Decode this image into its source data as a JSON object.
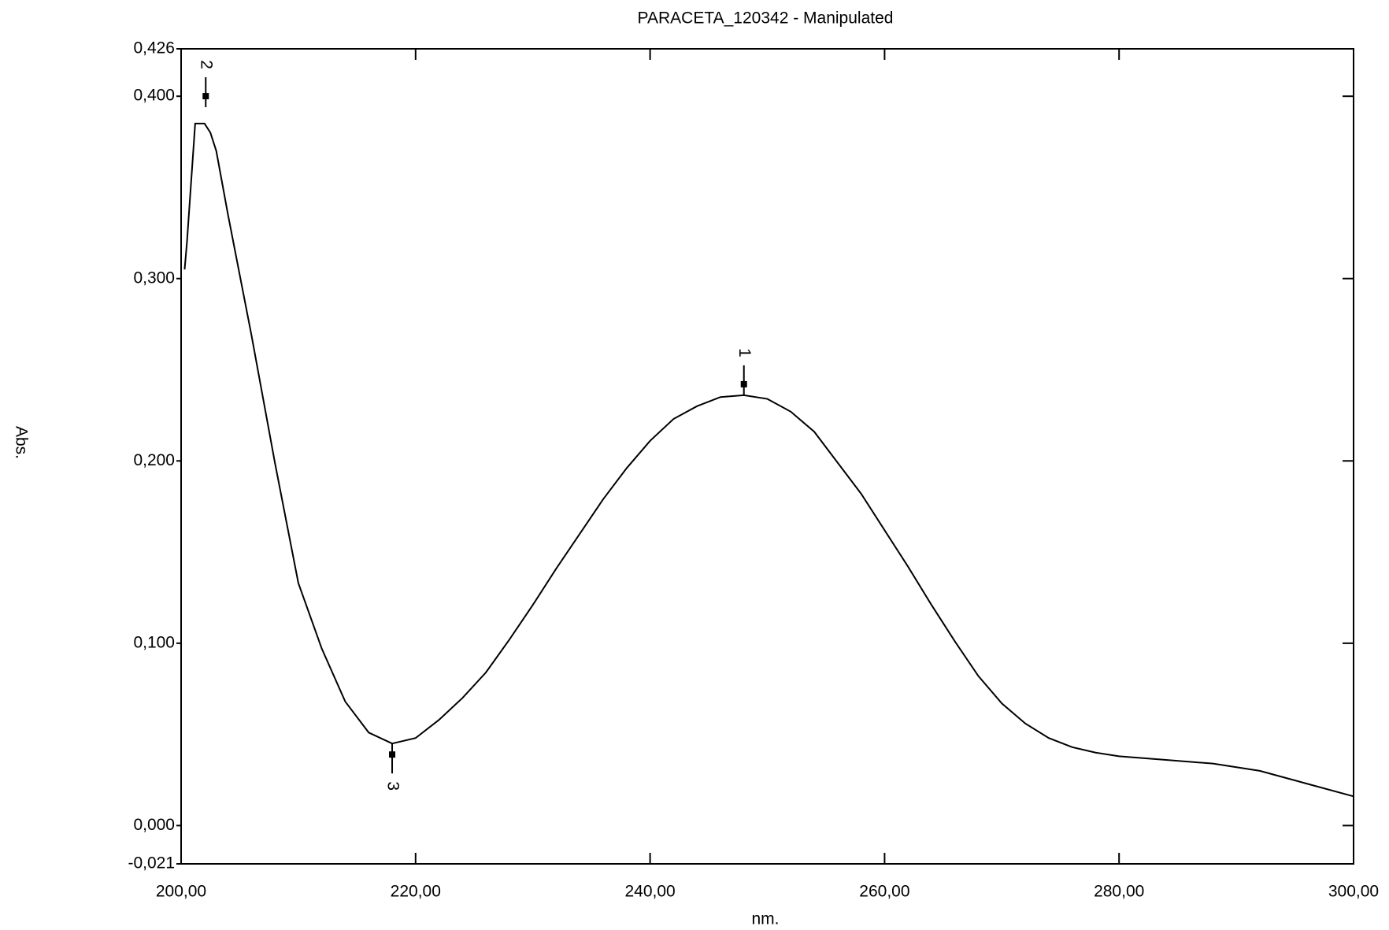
{
  "chart_data": {
    "type": "line",
    "title": "PARACETA_120342 - Manipulated",
    "x_label": "nm.",
    "y_label": "Abs.",
    "xlim": [
      200,
      300
    ],
    "xticks": [
      {
        "value": 200,
        "label": "200,00"
      },
      {
        "value": 220,
        "label": "220,00"
      },
      {
        "value": 240,
        "label": "240,00"
      },
      {
        "value": 260,
        "label": "260,00"
      },
      {
        "value": 280,
        "label": "280,00"
      },
      {
        "value": 300,
        "label": "300,00"
      }
    ],
    "ylim": [
      -0.021,
      0.426
    ],
    "yticks": [
      {
        "value": -0.021,
        "label": "-0,021"
      },
      {
        "value": 0,
        "label": "0,000"
      },
      {
        "value": 0.1,
        "label": "0,100"
      },
      {
        "value": 0.2,
        "label": "0,200"
      },
      {
        "value": 0.3,
        "label": "0,300"
      },
      {
        "value": 0.4,
        "label": "0,400"
      },
      {
        "value": 0.426,
        "label": "0,426"
      }
    ],
    "grid": false,
    "series": [
      {
        "color": "#000000",
        "x": [
          200.3,
          200.5,
          201.2,
          202,
          202.5,
          203,
          204,
          206,
          208,
          210,
          212,
          214,
          216,
          218,
          220,
          222,
          224,
          226,
          228,
          230,
          232,
          234,
          236,
          238,
          240,
          242,
          244,
          246,
          248,
          250,
          252,
          254,
          256,
          258,
          260,
          262,
          264,
          266,
          268,
          270,
          272,
          274,
          276,
          278,
          280,
          284,
          288,
          292,
          296,
          300
        ],
        "values": [
          0.305,
          0.32,
          0.385,
          0.385,
          0.38,
          0.37,
          0.335,
          0.269,
          0.199,
          0.133,
          0.097,
          0.068,
          0.051,
          0.045,
          0.048,
          0.058,
          0.07,
          0.084,
          0.102,
          0.121,
          0.141,
          0.16,
          0.179,
          0.196,
          0.211,
          0.223,
          0.23,
          0.235,
          0.236,
          0.234,
          0.227,
          0.216,
          0.199,
          0.182,
          0.162,
          0.142,
          0.121,
          0.101,
          0.082,
          0.067,
          0.056,
          0.048,
          0.043,
          0.04,
          0.038,
          0.036,
          0.034,
          0.03,
          0.023,
          0.016
        ]
      }
    ],
    "peaks": [
      {
        "label": "1",
        "x": 248,
        "y": 0.236
      },
      {
        "label": "2",
        "x": 202.1,
        "y": 0.394
      },
      {
        "label": "3",
        "x": 218,
        "y": 0.045
      }
    ]
  }
}
